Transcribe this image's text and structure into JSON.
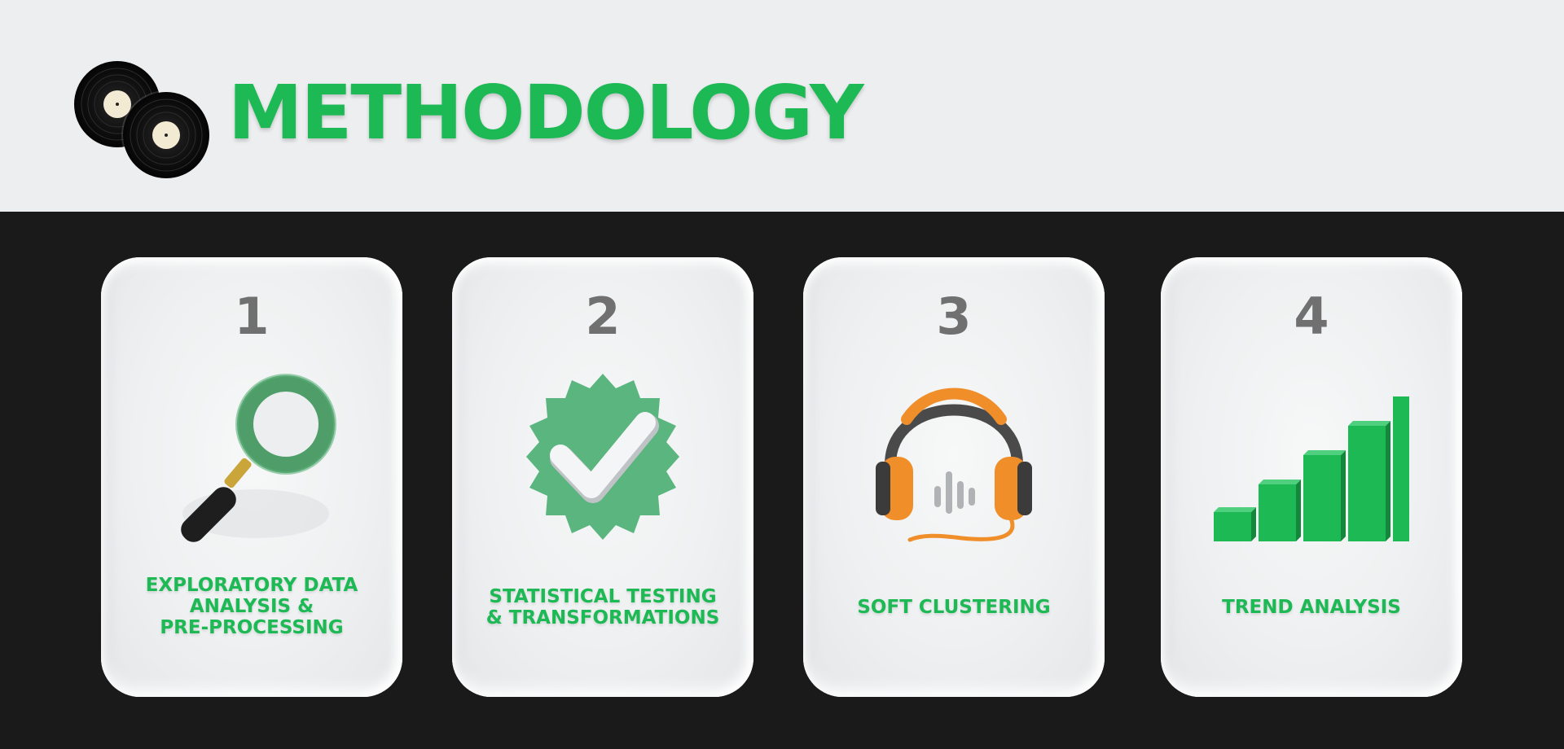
{
  "title": "METHODOLOGY",
  "colors": {
    "accent": "#1db954",
    "header_bg": "#eceef0",
    "main_bg": "#1a1a1a",
    "card_bg": "#eef0f1",
    "number": "#707070"
  },
  "logo": {
    "icon": "vinyl-records-icon"
  },
  "steps": [
    {
      "number": "1",
      "label": "EXPLORATORY DATA\nANALYSIS &\nPRE-PROCESSING",
      "icon": "magnifying-glass-icon"
    },
    {
      "number": "2",
      "label": "STATISTICAL TESTING\n& TRANSFORMATIONS",
      "icon": "verified-badge-icon"
    },
    {
      "number": "3",
      "label": "SOFT CLUSTERING",
      "icon": "headphones-icon"
    },
    {
      "number": "4",
      "label": "TREND ANALYSIS",
      "icon": "bar-chart-icon"
    }
  ]
}
